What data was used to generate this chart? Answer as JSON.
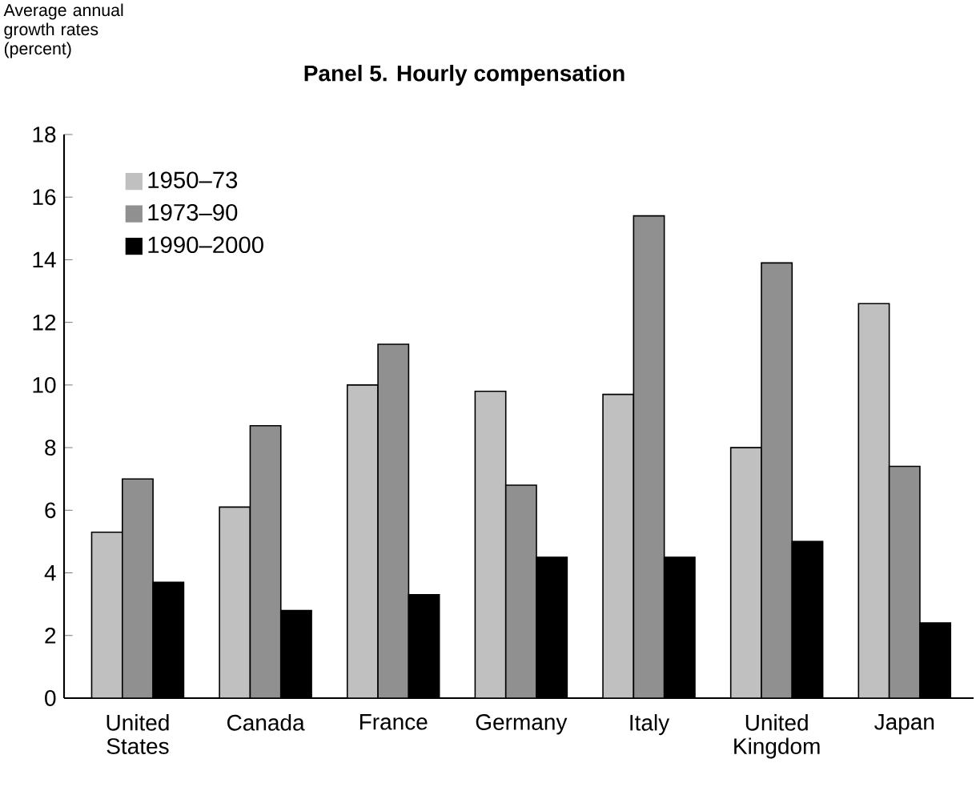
{
  "chart_data": {
    "type": "bar",
    "title": "Panel 5. Hourly compensation",
    "ylabel": "Average annual growth rates (percent)",
    "categories": [
      "United States",
      "Canada",
      "France",
      "Germany",
      "Italy",
      "United Kingdom",
      "Japan"
    ],
    "series": [
      {
        "name": "1950–73",
        "color": "#c0c0c0",
        "values": [
          5.3,
          6.1,
          10.0,
          9.8,
          9.7,
          8.0,
          12.6
        ]
      },
      {
        "name": "1973–90",
        "color": "#909090",
        "values": [
          7.0,
          8.7,
          11.3,
          6.8,
          15.4,
          13.9,
          7.4
        ]
      },
      {
        "name": "1990–2000",
        "color": "#000000",
        "values": [
          3.7,
          2.8,
          3.3,
          4.5,
          4.5,
          5.0,
          2.4
        ]
      }
    ],
    "ylim": [
      0,
      18
    ],
    "yticks": [
      0,
      2,
      4,
      6,
      8,
      10,
      12,
      14,
      16,
      18
    ],
    "grid": false,
    "legend": "top left"
  }
}
